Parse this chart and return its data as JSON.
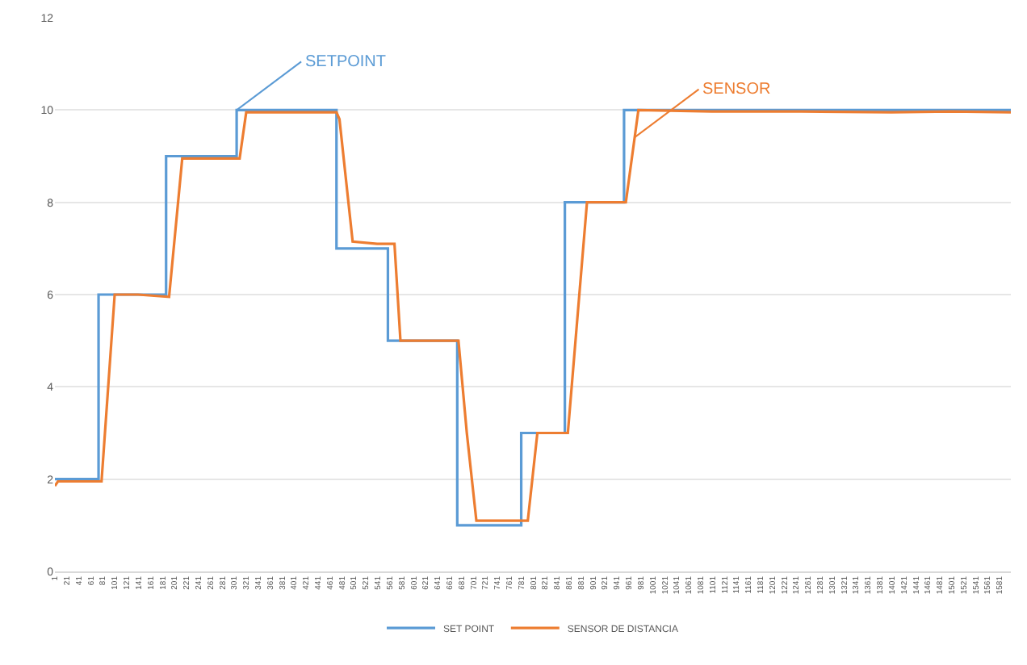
{
  "chart_data": {
    "type": "line",
    "xlim": [
      1,
      1600
    ],
    "xticks": [
      1,
      21,
      41,
      61,
      81,
      101,
      121,
      141,
      161,
      181,
      201,
      221,
      241,
      261,
      281,
      301,
      321,
      341,
      361,
      381,
      401,
      421,
      441,
      461,
      481,
      501,
      521,
      541,
      561,
      581,
      601,
      621,
      641,
      661,
      681,
      701,
      721,
      741,
      761,
      781,
      801,
      821,
      841,
      861,
      881,
      901,
      921,
      941,
      961,
      981,
      1001,
      1021,
      1041,
      1061,
      1081,
      1101,
      1121,
      1141,
      1161,
      1181,
      1201,
      1221,
      1241,
      1261,
      1281,
      1301,
      1321,
      1341,
      1361,
      1381,
      1401,
      1421,
      1441,
      1461,
      1481,
      1501,
      1521,
      1541,
      1561,
      1581
    ],
    "ylim": [
      0,
      12
    ],
    "yticks": [
      0,
      2,
      4,
      6,
      8,
      10,
      12
    ],
    "grid": "y",
    "legend": "bottom",
    "marker": "none",
    "line_style": "solid",
    "series": [
      {
        "name": "SET POINT",
        "type": "step",
        "color": "#5b9bd5",
        "x": [
          1,
          74,
          187,
          305,
          472,
          558,
          674,
          781,
          854,
          953,
          1600
        ],
        "values": [
          2,
          6,
          9,
          10,
          7,
          5,
          1,
          3,
          8,
          10,
          10
        ]
      },
      {
        "name": "SENSOR DE DISTANCIA",
        "color": "#ed7d31",
        "x": [
          1,
          6,
          40,
          79,
          101,
          140,
          192,
          214,
          250,
          310,
          321,
          400,
          472,
          477,
          499,
          540,
          569,
          579,
          620,
          676,
          690,
          706,
          750,
          792,
          808,
          840,
          859,
          891,
          930,
          956,
          977,
          1100,
          1250,
          1400,
          1500,
          1600
        ],
        "values": [
          1.85,
          1.95,
          1.95,
          1.95,
          6,
          6,
          5.95,
          8.95,
          8.95,
          8.95,
          9.95,
          9.95,
          9.95,
          9.8,
          7.15,
          7.1,
          7.1,
          5,
          5,
          5,
          3,
          1.1,
          1.1,
          1.1,
          3,
          3,
          3,
          8,
          8,
          8,
          10,
          9.97,
          9.97,
          9.95,
          9.97,
          9.95
        ]
      }
    ],
    "annotations": [
      {
        "text": "SETPOINT",
        "x": 305,
        "y": 10
      },
      {
        "text": "SENSOR",
        "x": 970,
        "y": 9.4
      }
    ]
  }
}
